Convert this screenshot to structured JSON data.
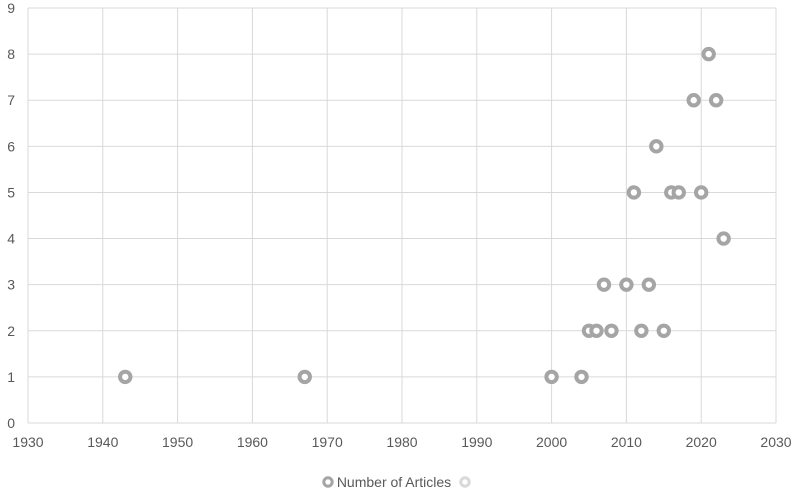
{
  "chart_data": {
    "type": "scatter",
    "title": "",
    "xlabel": "",
    "ylabel": "",
    "xlim": [
      1930,
      2030
    ],
    "ylim": [
      0,
      9
    ],
    "x_ticks": [
      1930,
      1940,
      1950,
      1960,
      1970,
      1980,
      1990,
      2000,
      2010,
      2020,
      2030
    ],
    "y_ticks": [
      0,
      1,
      2,
      3,
      4,
      5,
      6,
      7,
      8,
      9
    ],
    "grid": true,
    "legend_position": "bottom",
    "series": [
      {
        "name": "Number of Articles",
        "color": "#a5a5a5",
        "points": [
          {
            "x": 1943,
            "y": 1
          },
          {
            "x": 1967,
            "y": 1
          },
          {
            "x": 2000,
            "y": 1
          },
          {
            "x": 2004,
            "y": 1
          },
          {
            "x": 2005,
            "y": 2
          },
          {
            "x": 2006,
            "y": 2
          },
          {
            "x": 2007,
            "y": 3
          },
          {
            "x": 2008,
            "y": 2
          },
          {
            "x": 2010,
            "y": 3
          },
          {
            "x": 2011,
            "y": 5
          },
          {
            "x": 2012,
            "y": 2
          },
          {
            "x": 2013,
            "y": 3
          },
          {
            "x": 2014,
            "y": 6
          },
          {
            "x": 2015,
            "y": 2
          },
          {
            "x": 2016,
            "y": 5
          },
          {
            "x": 2017,
            "y": 5
          },
          {
            "x": 2019,
            "y": 7
          },
          {
            "x": 2020,
            "y": 5
          },
          {
            "x": 2021,
            "y": 8
          },
          {
            "x": 2022,
            "y": 7
          },
          {
            "x": 2023,
            "y": 4
          }
        ]
      },
      {
        "name": "",
        "color": "#d9d9d9",
        "points": []
      }
    ]
  }
}
